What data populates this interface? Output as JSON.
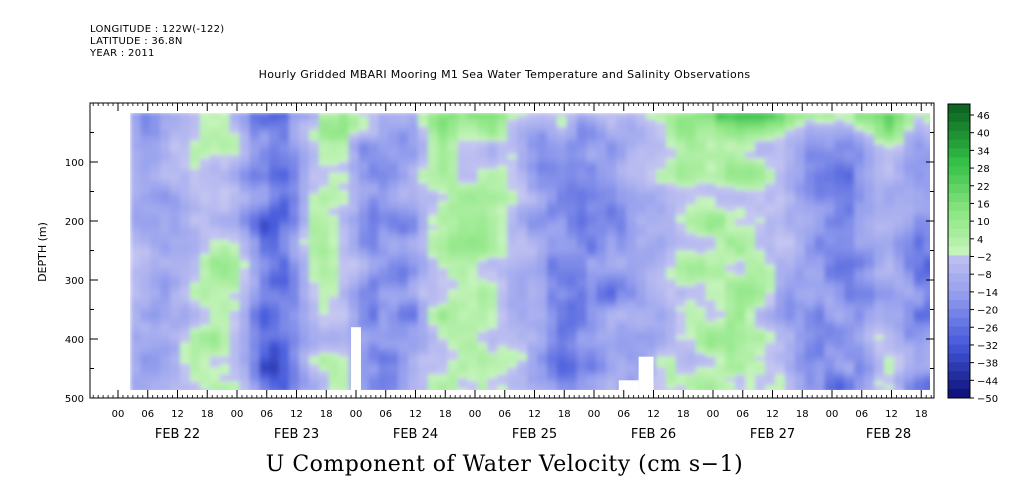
{
  "header": {
    "longitude": "LONGITUDE : 122W(-122)",
    "latitude": "LATITUDE : 36.8N",
    "year": "YEAR : 2011"
  },
  "chart_data": {
    "type": "heatmap",
    "title": "Hourly Gridded MBARI Mooring M1 Sea Water Temperature and Salinity Observations",
    "xlabel": "",
    "ylabel": "DEPTH (m)",
    "footer": "U Component of Water Velocity (cm s−1)",
    "ylim": [
      500,
      0
    ],
    "y_ticks": [
      100,
      200,
      300,
      400,
      500
    ],
    "x_hour_ticks": [
      "00",
      "06",
      "12",
      "18",
      "00",
      "06",
      "12",
      "18",
      "00",
      "06",
      "12",
      "18",
      "00",
      "06",
      "12",
      "18",
      "00",
      "06",
      "12",
      "18",
      "00",
      "06",
      "12",
      "18",
      "00",
      "06",
      "12",
      "18"
    ],
    "x_day_labels": [
      "FEB 22",
      "FEB 23",
      "FEB 24",
      "FEB 25",
      "FEB 26",
      "FEB 27",
      "FEB 28"
    ],
    "colorbar": {
      "labels": [
        "46",
        "40",
        "34",
        "28",
        "22",
        "16",
        "10",
        "4",
        "−2",
        "−8",
        "−14",
        "−20",
        "−26",
        "−32",
        "−38",
        "−44",
        "−50"
      ],
      "min": -50,
      "max": 50,
      "step": 3
    },
    "colors": {
      "positive_dark": "#0a5a1a",
      "positive_mid": "#22b83a",
      "positive_light": "#9be88a",
      "neutral": "#b8f0a8",
      "negative_light": "#b8b8f0",
      "negative_mid": "#7a8ae8",
      "negative_dark": "#0a0a6a"
    }
  }
}
